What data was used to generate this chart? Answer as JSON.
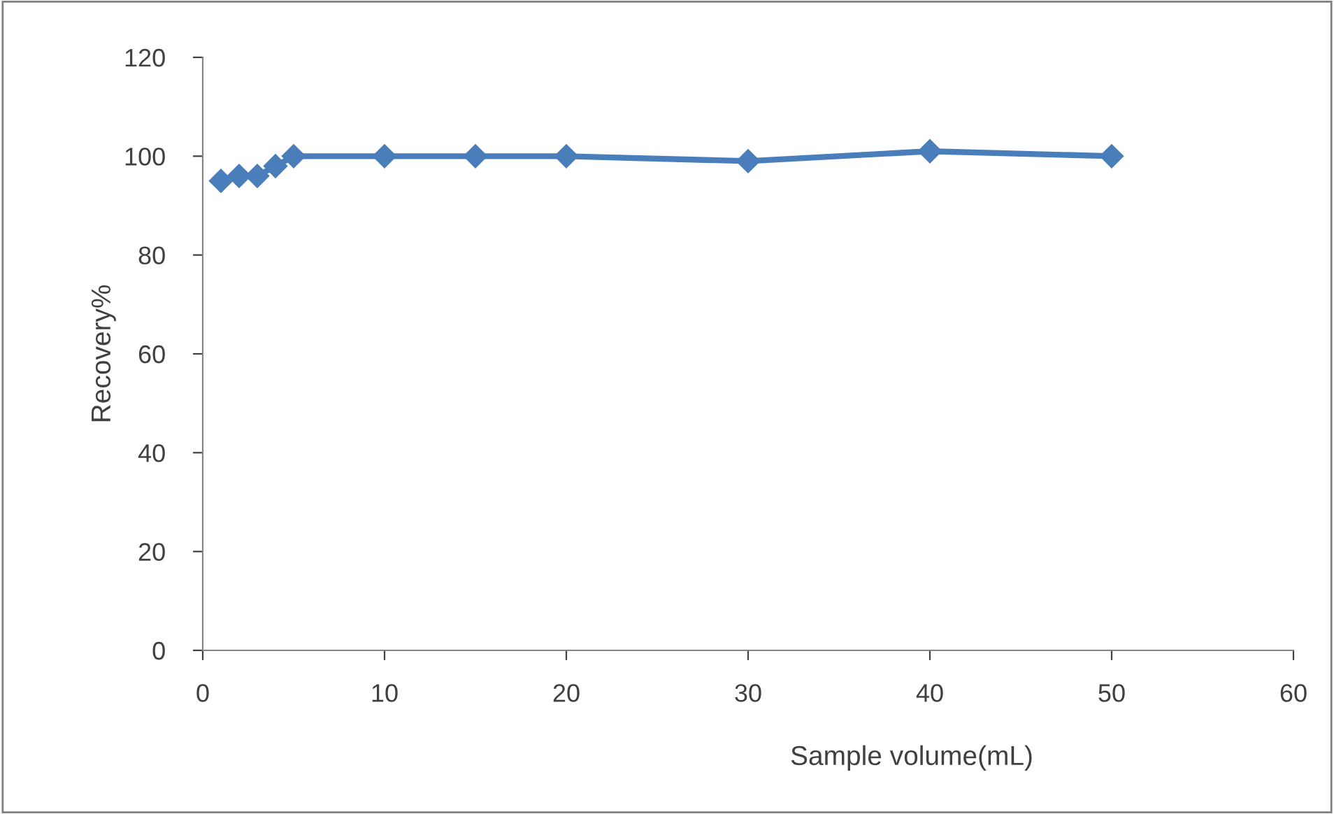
{
  "chart_data": {
    "type": "line",
    "xlabel": "Sample volume(mL)",
    "ylabel": "Recovery%",
    "x": [
      1,
      2,
      3,
      4,
      5,
      10,
      15,
      20,
      30,
      40,
      50
    ],
    "series": [
      {
        "color": "#4a7ebb",
        "values": [
          95,
          96,
          96,
          98,
          100,
          100,
          100,
          100,
          99,
          101,
          100
        ]
      }
    ],
    "xlim": [
      0,
      60
    ],
    "xticks": [
      0,
      10,
      20,
      30,
      40,
      50,
      60
    ],
    "ylim": [
      0,
      120
    ],
    "yticks": [
      0,
      20,
      40,
      60,
      80,
      100,
      120
    ],
    "grid": false,
    "legend": false,
    "marker": "diamond",
    "line_style": "solid"
  }
}
